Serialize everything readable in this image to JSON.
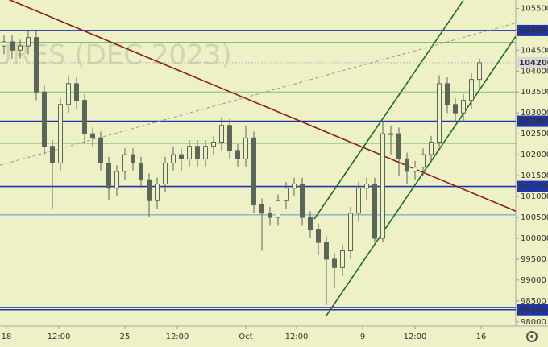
{
  "chart_data": {
    "type": "candlestick",
    "watermark": "URES (DEC 2023)",
    "color": "#5b665b",
    "open": [
      104600,
      104700,
      104500,
      104600,
      104800,
      103500,
      102200,
      101800,
      103200,
      103700,
      103300,
      102500,
      102400,
      101800,
      101200,
      101600,
      102000,
      101800,
      101400,
      100900,
      101300,
      101800,
      102000,
      101900,
      102200,
      101900,
      102200,
      102300,
      102700,
      102100,
      101900,
      102400,
      100800,
      100600,
      100500,
      100900,
      101200,
      101300,
      100500,
      100200,
      99900,
      99500,
      99300,
      99700,
      100600,
      101200,
      101300,
      100000,
      102500,
      102500,
      101900,
      101600,
      101700,
      102000,
      102300,
      103700,
      103200,
      103000,
      103300,
      103800
    ],
    "high": [
      104850,
      104850,
      104750,
      104970,
      104950,
      103650,
      102350,
      103350,
      103900,
      103850,
      103450,
      102650,
      102550,
      101950,
      101750,
      102150,
      102150,
      101950,
      101550,
      101450,
      101950,
      102200,
      102150,
      102350,
      102350,
      102350,
      102450,
      102900,
      102850,
      102250,
      102700,
      102550,
      100950,
      100750,
      101050,
      101350,
      101450,
      101450,
      100650,
      100350,
      100050,
      99650,
      99850,
      100750,
      101350,
      101450,
      101450,
      102800,
      102700,
      102650,
      102050,
      101850,
      102150,
      102450,
      103900,
      103850,
      103350,
      103450,
      103950,
      104300
    ],
    "low": [
      104400,
      104300,
      104300,
      104400,
      103300,
      102000,
      100700,
      101600,
      103000,
      103100,
      102300,
      102200,
      101600,
      100900,
      101000,
      101400,
      101600,
      101200,
      100500,
      100700,
      101100,
      101600,
      101600,
      101700,
      101700,
      101700,
      102000,
      102100,
      101900,
      101700,
      101700,
      100600,
      99700,
      100300,
      100300,
      100700,
      101000,
      100300,
      100000,
      99600,
      98400,
      98800,
      99100,
      99500,
      100400,
      100900,
      99900,
      99900,
      102000,
      101500,
      101300,
      101400,
      101500,
      101800,
      102200,
      103000,
      102800,
      102800,
      103100,
      103600
    ],
    "close": [
      104700,
      104500,
      104600,
      104800,
      103500,
      102200,
      101800,
      103200,
      103700,
      103300,
      102500,
      102400,
      101800,
      101200,
      101600,
      102000,
      101800,
      101400,
      100900,
      101300,
      101800,
      102000,
      101900,
      102200,
      101900,
      102200,
      102300,
      102700,
      102100,
      101900,
      102400,
      100800,
      100600,
      100500,
      100900,
      101200,
      101300,
      100500,
      100200,
      99900,
      99500,
      99300,
      99700,
      100600,
      101200,
      101300,
      100000,
      102500,
      102500,
      101900,
      101600,
      101700,
      102000,
      102300,
      103700,
      103200,
      103000,
      103300,
      103800,
      104200
    ],
    "xlim": [
      0,
      64
    ],
    "xticks": [
      {
        "value": 0.8,
        "label": "18"
      },
      {
        "value": 7.3,
        "label": "12:00"
      },
      {
        "value": 15.5,
        "label": "25"
      },
      {
        "value": 22,
        "label": "12:00"
      },
      {
        "value": 30.5,
        "label": "Oct"
      },
      {
        "value": 36.8,
        "label": "12:00"
      },
      {
        "value": 45,
        "label": "9"
      },
      {
        "value": 51.5,
        "label": "12:00"
      },
      {
        "value": 59.7,
        "label": "16"
      }
    ],
    "ylim": [
      97900,
      105700
    ],
    "yticks": [
      98000,
      98500,
      99000,
      99500,
      100000,
      100500,
      101000,
      101500,
      102000,
      102500,
      103000,
      103500,
      104000,
      104500,
      105000,
      105500
    ],
    "levels": [
      {
        "value": 104690,
        "color": "#7cc46a"
      },
      {
        "value": 103500,
        "color": "#7cc46a"
      },
      {
        "value": 102270,
        "color": "#7cc46a"
      },
      {
        "value": 100560,
        "color": "#5a9ad6"
      },
      {
        "value": 98350,
        "color": "#2b3fb0"
      }
    ],
    "price_labels": [
      {
        "value": 104970,
        "color": "#1f35a8",
        "text_color": "#ffffff"
      },
      {
        "value": 104200,
        "color": "#d8d8d8",
        "text_color": "#222222"
      },
      {
        "value": 102800,
        "color": "#1f35a8",
        "text_color": "#ffffff"
      },
      {
        "value": 101240,
        "color": "#1f35a8",
        "text_color": "#ffffff"
      },
      {
        "value": 98290,
        "color": "#1f35a8",
        "text_color": "#ffffff"
      }
    ],
    "trendlines": [
      {
        "color": "#8b1c1c",
        "dashed": false,
        "points": [
          [
            0,
            105800
          ],
          [
            64,
            100650
          ]
        ]
      },
      {
        "color": "#1e6b1e",
        "dashed": false,
        "points": [
          [
            39,
            100460
          ],
          [
            57.5,
            105690
          ]
        ]
      },
      {
        "color": "#1e6b1e",
        "dashed": false,
        "points": [
          [
            40.5,
            98150
          ],
          [
            64,
            104830
          ]
        ]
      },
      {
        "color": "#999999",
        "dashed": true,
        "points": [
          [
            0,
            101750
          ],
          [
            64,
            105150
          ]
        ]
      }
    ]
  }
}
